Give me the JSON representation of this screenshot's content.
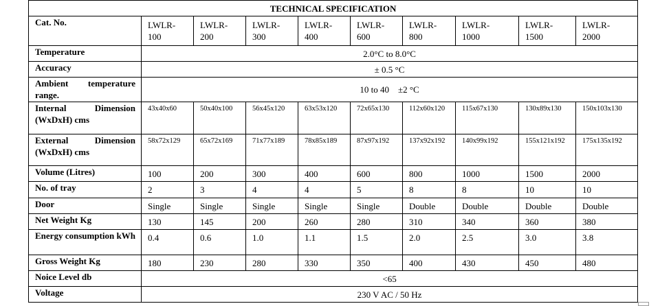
{
  "title": "TECHNICAL SPECIFICATION",
  "table": {
    "rows": [
      [
        "Cat. No.",
        "LWLR-100",
        "LWLR-200",
        "LWLR-300",
        "LWLR-400",
        "LWLR-600",
        "LWLR-800",
        "LWLR-1000",
        "LWLR-1500",
        "LWLR-2000"
      ],
      [
        "Temperature",
        "2.0°C to 8.0°C"
      ],
      [
        "Accuracy",
        "± 0.5 °C"
      ],
      [
        "Ambient temperature range.",
        "10 to 40    ±2 °C"
      ],
      [
        "Internal Dimension (WxDxH) cms",
        "43x40x60",
        "50x40x100",
        "56x45x120",
        "63x53x120",
        "72x65x130",
        "112x60x120",
        "115x67x130",
        "130x89x130",
        "150x103x130"
      ],
      [
        "External Dimension (WxDxH) cms",
        "58x72x129",
        "65x72x169",
        "71x77x189",
        "78x85x189",
        "87x97x192",
        "137x92x192",
        "140x99x192",
        "155x121x192",
        "175x135x192"
      ],
      [
        "Volume (Litres)",
        "100",
        "200",
        "300",
        "400",
        "600",
        "800",
        "1000",
        "1500",
        "2000"
      ],
      [
        "No. of tray",
        "2",
        "3",
        "4",
        "4",
        "5",
        "8",
        "8",
        "10",
        "10"
      ],
      [
        "Door",
        "Single",
        "Single",
        "Single",
        "Single",
        "Single",
        "Double",
        "Double",
        "Double",
        "Double"
      ],
      [
        "Net Weight Kg",
        "130",
        "145",
        "200",
        "260",
        "280",
        "310",
        "340",
        "360",
        "380"
      ],
      [
        "Energy consumption kWh",
        "0.4",
        "0.6",
        "1.0",
        "1.1",
        "1.5",
        "2.0",
        "2.5",
        "3.0",
        "3.8"
      ],
      [
        "Gross Weight Kg",
        "180",
        "230",
        "280",
        "330",
        "350",
        "400",
        "430",
        "450",
        "480"
      ],
      [
        "Noice Level db",
        "<65"
      ],
      [
        "Voltage",
        "230 V AC / 50 Hz"
      ]
    ]
  }
}
